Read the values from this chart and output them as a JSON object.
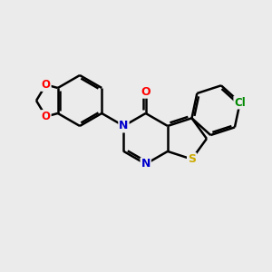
{
  "background_color": "#ebebeb",
  "atom_colors": {
    "C": "#000000",
    "N": "#0000cc",
    "O": "#ff0000",
    "S": "#ccaa00",
    "Cl": "#008800"
  },
  "bond_color": "#000000",
  "bond_width": 1.8,
  "figsize": [
    3.0,
    3.0
  ],
  "dpi": 100,
  "xlim": [
    0,
    10
  ],
  "ylim": [
    0,
    10
  ]
}
